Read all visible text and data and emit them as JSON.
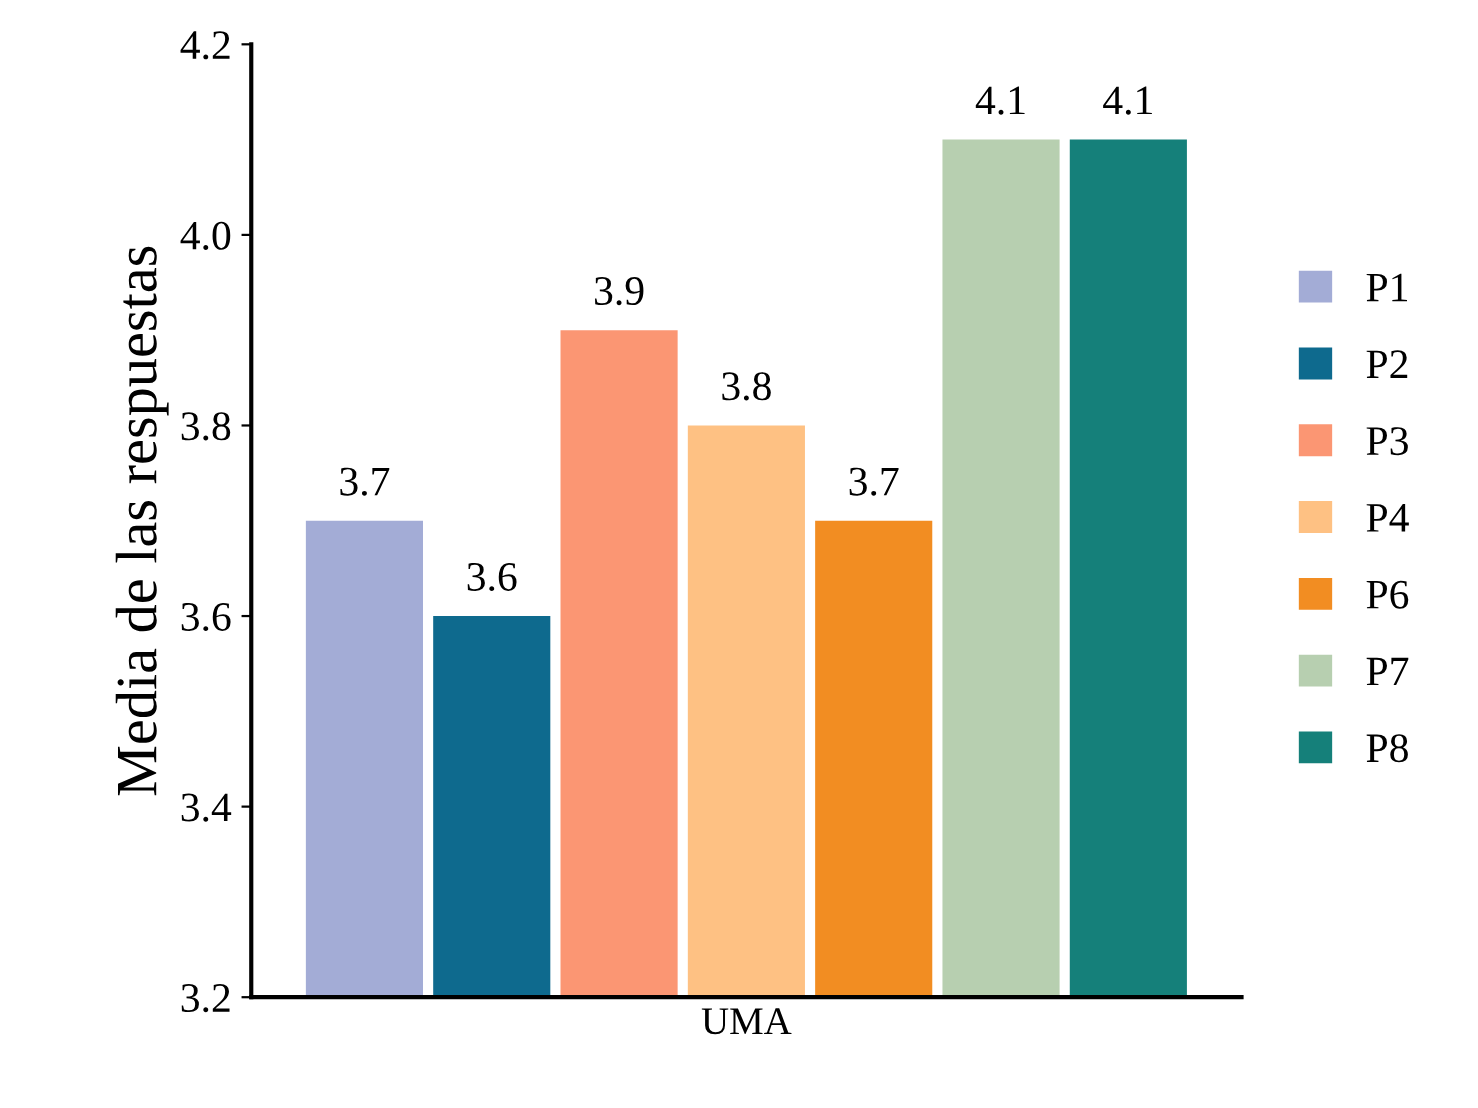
{
  "chart_data": {
    "type": "bar",
    "ylabel": "Media de las respuestas",
    "categories": [
      "UMA"
    ],
    "series": [
      {
        "name": "P1",
        "color": "#a3acd6",
        "values": [
          3.7
        ]
      },
      {
        "name": "P2",
        "color": "#0e6a8e",
        "values": [
          3.6
        ]
      },
      {
        "name": "P3",
        "color": "#fb9673",
        "values": [
          3.9
        ]
      },
      {
        "name": "P4",
        "color": "#fec183",
        "values": [
          3.8
        ]
      },
      {
        "name": "P6",
        "color": "#f28d22",
        "values": [
          3.7
        ]
      },
      {
        "name": "P7",
        "color": "#b7cfb0",
        "values": [
          4.1
        ]
      },
      {
        "name": "P8",
        "color": "#15807a",
        "values": [
          4.1
        ]
      }
    ],
    "ylim": [
      3.2,
      4.2
    ],
    "yticks": [
      3.2,
      3.4,
      3.6,
      3.8,
      {
        "value": 4,
        "label": "4.0"
      },
      4.2
    ],
    "data_labels": true,
    "legend": "right",
    "grid": false
  }
}
